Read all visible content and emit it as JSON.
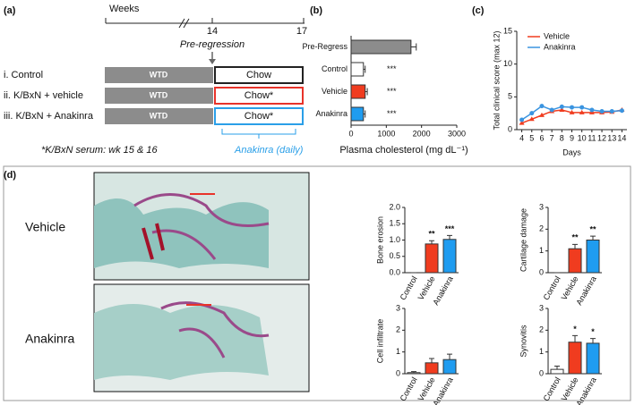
{
  "panel_labels": [
    "(a)",
    "(b)",
    "(c)",
    "(d)"
  ],
  "diagram": {
    "weeks": "Weeks",
    "week_start": "14",
    "week_end": "17",
    "phase": "Pre-regression",
    "rows": [
      {
        "label": "i. Control",
        "diet": "WTD",
        "after": "Chow"
      },
      {
        "label": "ii. K/BxN + vehicle",
        "diet": "WTD",
        "after": "Chow*"
      },
      {
        "label": "iii. K/BxN + Anakinra",
        "diet": "WTD",
        "after": "Chow*"
      }
    ],
    "footnote": "*K/BxN serum: wk 15 & 16",
    "treatment": "Anakinra (daily)"
  },
  "histology": [
    "Vehicle",
    "Anakinra"
  ],
  "chart_data": [
    {
      "type": "hbar",
      "categories": [
        "Pre-Regress",
        "Control",
        "Vehicle",
        "Anakinra"
      ],
      "values": [
        1700,
        350,
        400,
        350
      ],
      "errors": [
        150,
        50,
        60,
        50
      ],
      "colors": [
        "#8c8c8c",
        "#ffffff",
        "#f03c1f",
        "#1f9cf0"
      ],
      "annotations": [
        null,
        "***",
        "***",
        "***"
      ],
      "xlim": [
        0,
        3000
      ],
      "xticks": [
        0,
        1000,
        2000,
        3000
      ],
      "xlabel": "Plasma cholesterol (mg dL⁻¹)"
    },
    {
      "type": "line",
      "x": [
        4,
        5,
        6,
        7,
        8,
        9,
        10,
        11,
        12,
        13,
        14
      ],
      "series": [
        {
          "name": "Vehicle",
          "color": "#f03c1f",
          "values": [
            1.0,
            1.6,
            2.2,
            2.8,
            3.0,
            2.6,
            2.6,
            2.6,
            2.6,
            2.7,
            3.0
          ]
        },
        {
          "name": "Anakinra",
          "color": "#3a94e0",
          "values": [
            1.5,
            2.5,
            3.6,
            3.0,
            3.5,
            3.4,
            3.4,
            3.0,
            2.8,
            2.8,
            2.9
          ]
        }
      ],
      "xlim": [
        3.5,
        14.5
      ],
      "xticks": [
        4,
        5,
        6,
        7,
        8,
        9,
        10,
        11,
        12,
        13,
        14
      ],
      "ylim": [
        0,
        15
      ],
      "yticks": [
        0,
        5,
        10,
        15
      ],
      "xlabel": "Days",
      "ylabel": "Total clinical score (max 12)",
      "legend": "upper left"
    },
    {
      "type": "bar",
      "categories": [
        "Control",
        "Vehicle",
        "Anakinra"
      ],
      "values": [
        0,
        0.88,
        1.02
      ],
      "errors": [
        0,
        0.1,
        0.12
      ],
      "colors": [
        "#ffffff",
        "#f03c1f",
        "#1f9cf0"
      ],
      "annotations": [
        null,
        "**",
        "***"
      ],
      "ylabel": "Bone erosion",
      "ylim": [
        0,
        2
      ],
      "yticks": [
        {
          "value": 0,
          "label": "0.0"
        },
        {
          "value": 0.5,
          "label": "0.5"
        },
        {
          "value": 1,
          "label": "1.0"
        },
        {
          "value": 1.5,
          "label": "1.5"
        },
        {
          "value": 2,
          "label": "2.0"
        }
      ]
    },
    {
      "type": "bar",
      "categories": [
        "Control",
        "Vehicle",
        "Anakinra"
      ],
      "values": [
        0,
        1.1,
        1.5
      ],
      "errors": [
        0,
        0.2,
        0.18
      ],
      "colors": [
        "#ffffff",
        "#f03c1f",
        "#1f9cf0"
      ],
      "annotations": [
        null,
        "**",
        "**"
      ],
      "ylabel": "Cartilage damage",
      "ylim": [
        0,
        3
      ],
      "yticks": [
        0,
        1,
        2,
        3
      ]
    },
    {
      "type": "bar",
      "categories": [
        "Control",
        "Vehicle",
        "Anakinra"
      ],
      "values": [
        0.05,
        0.5,
        0.65
      ],
      "errors": [
        0.05,
        0.2,
        0.25
      ],
      "colors": [
        "#ffffff",
        "#f03c1f",
        "#1f9cf0"
      ],
      "annotations": [
        null,
        null,
        null
      ],
      "ylabel": "Cell infiltrate",
      "ylim": [
        0,
        3
      ],
      "yticks": [
        0,
        1,
        2,
        3
      ]
    },
    {
      "type": "bar",
      "categories": [
        "Control",
        "Vehicle",
        "Anakinra"
      ],
      "values": [
        0.2,
        1.45,
        1.4
      ],
      "errors": [
        0.15,
        0.3,
        0.22
      ],
      "colors": [
        "#ffffff",
        "#f03c1f",
        "#1f9cf0"
      ],
      "annotations": [
        null,
        "*",
        "*"
      ],
      "ylabel": "Synovitis",
      "ylim": [
        0,
        3
      ],
      "yticks": [
        0,
        1,
        2,
        3
      ]
    }
  ]
}
